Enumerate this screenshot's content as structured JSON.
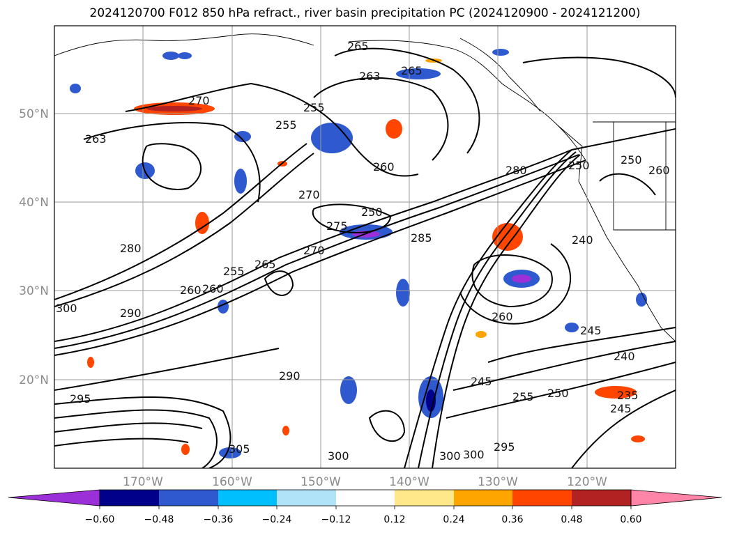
{
  "title": "2024120700 F012 850 hPa refract., river basin precipitation PC (2024120900 - 2024121200)",
  "map": {
    "lat_labels": [
      "50°N",
      "40°N",
      "30°N",
      "20°N"
    ],
    "lon_labels": [
      "170°W",
      "160°W",
      "150°W",
      "140°W",
      "130°W",
      "120°W"
    ],
    "contour_labels": [
      "270",
      "255",
      "265",
      "263",
      "265",
      "260",
      "255",
      "263",
      "270",
      "250",
      "280",
      "270",
      "265",
      "255",
      "260",
      "280",
      "250",
      "245",
      "240",
      "260",
      "245",
      "240",
      "255",
      "250",
      "300",
      "295",
      "290",
      "300",
      "305",
      "300",
      "285",
      "275",
      "235",
      "245",
      "295",
      "290",
      "300",
      "260",
      "260",
      "250"
    ]
  },
  "colorbar": {
    "colors": [
      "#9b30d9",
      "#00008b",
      "#2f5acf",
      "#00bfff",
      "#b0e2f8",
      "#ffffff",
      "#ffe88a",
      "#ffa500",
      "#ff4500",
      "#b22222",
      "#ff85a8"
    ],
    "tick_labels": [
      "−0.60",
      "−0.48",
      "−0.36",
      "−0.24",
      "−0.12",
      "0.12",
      "0.24",
      "0.36",
      "0.48",
      "0.60"
    ]
  }
}
